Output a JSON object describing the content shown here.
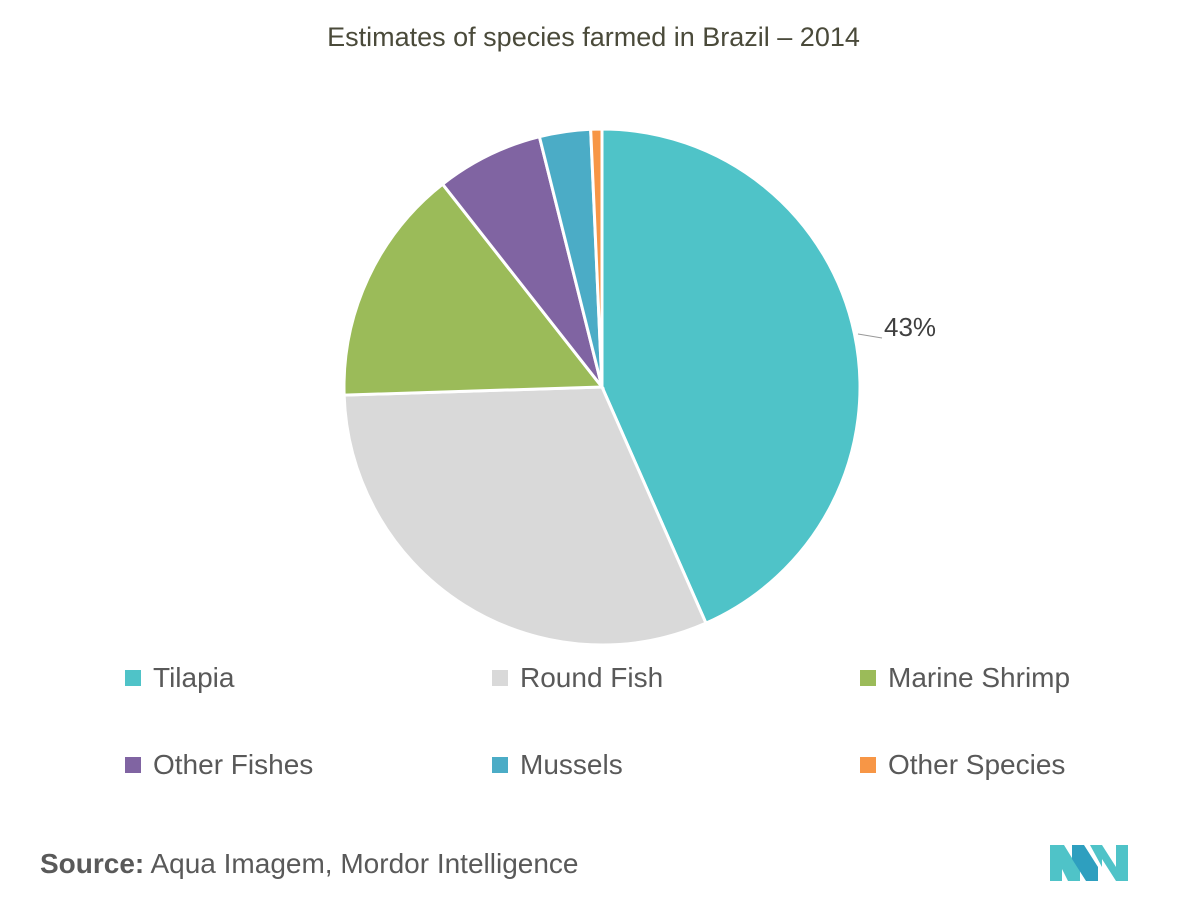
{
  "chart_data": {
    "type": "pie",
    "title": "Estimates of species farmed in Brazil – 2014",
    "categories": [
      "Tilapia",
      "Round Fish",
      "Marine Shrimp",
      "Other Fishes",
      "Mussels",
      "Other Species"
    ],
    "values": [
      43.4,
      31.1,
      14.9,
      6.7,
      3.2,
      0.7
    ],
    "colors": [
      "#4FC3C8",
      "#D9D9D9",
      "#9BBB59",
      "#8064A2",
      "#4BACC6",
      "#F79646"
    ],
    "data_labels": [
      {
        "category": "Tilapia",
        "text": "43%"
      }
    ],
    "legend_position": "bottom"
  },
  "source": {
    "label": "Source:",
    "text": " Aqua Imagem, Mordor Intelligence"
  }
}
